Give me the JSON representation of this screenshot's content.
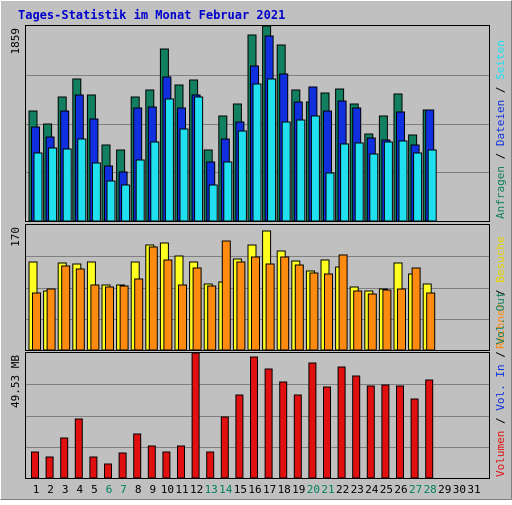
{
  "title": "Tages-Statistik im Monat Februar 2021",
  "colors": {
    "background": "#c0c0c0",
    "title_text": "#0000cc",
    "anfragen": "#128060",
    "dateien": "#1030e0",
    "seiten": "#20e0f0",
    "besuche": "#ffff20",
    "rechner": "#ff8a10",
    "volumen": "#e01010",
    "weekday_label": "#000000",
    "weekend_label": "#008060"
  },
  "chart_data": [
    {
      "type": "bar",
      "panel": "hits",
      "axis_label": "1859",
      "ylim": [
        0,
        1859
      ],
      "categories": [
        "1",
        "2",
        "3",
        "4",
        "5",
        "6",
        "7",
        "8",
        "9",
        "10",
        "11",
        "12",
        "13",
        "14",
        "15",
        "16",
        "17",
        "18",
        "19",
        "20",
        "21",
        "22",
        "23",
        "24",
        "25",
        "26",
        "27",
        "28",
        "29",
        "30",
        "31"
      ],
      "series": [
        {
          "name": "Anfragen",
          "values": [
            1050,
            920,
            1180,
            1350,
            1200,
            720,
            680,
            1180,
            1250,
            1640,
            1300,
            1340,
            680,
            1000,
            1120,
            1770,
            1859,
            1680,
            1250,
            1130,
            1220,
            1260,
            1120,
            830,
            1000,
            1210,
            820,
            1060,
            0,
            0,
            0
          ]
        },
        {
          "name": "Dateien",
          "values": [
            900,
            800,
            1050,
            1200,
            970,
            520,
            470,
            1080,
            1090,
            1370,
            1080,
            1200,
            560,
            780,
            940,
            1480,
            1760,
            1400,
            1130,
            1280,
            1050,
            1140,
            1080,
            790,
            770,
            1040,
            720,
            1060,
            0,
            0,
            0
          ]
        },
        {
          "name": "Seiten",
          "values": [
            650,
            700,
            690,
            780,
            550,
            380,
            340,
            580,
            750,
            1160,
            880,
            1180,
            340,
            560,
            860,
            1310,
            1350,
            940,
            960,
            1000,
            460,
            730,
            740,
            640,
            750,
            760,
            650,
            680,
            0,
            0,
            0
          ]
        }
      ]
    },
    {
      "type": "bar",
      "panel": "visits",
      "axis_label": "170",
      "ylim": [
        0,
        170
      ],
      "categories": [
        "1",
        "2",
        "3",
        "4",
        "5",
        "6",
        "7",
        "8",
        "9",
        "10",
        "11",
        "12",
        "13",
        "14",
        "15",
        "16",
        "17",
        "18",
        "19",
        "20",
        "21",
        "22",
        "23",
        "24",
        "25",
        "26",
        "27",
        "28",
        "29",
        "30",
        "31"
      ],
      "series": [
        {
          "name": "Besuche",
          "values": [
            120,
            80,
            118,
            117,
            120,
            88,
            89,
            120,
            143,
            145,
            128,
            119,
            90,
            92,
            124,
            143,
            162,
            135,
            121,
            107,
            122,
            113,
            86,
            80,
            83,
            118,
            104,
            90,
            0,
            0,
            0
          ]
        },
        {
          "name": "Rechner",
          "values": [
            77,
            83,
            114,
            110,
            88,
            85,
            87,
            96,
            140,
            122,
            89,
            112,
            87,
            148,
            119,
            126,
            117,
            126,
            116,
            105,
            104,
            129,
            80,
            76,
            81,
            83,
            112,
            78,
            0,
            0,
            0
          ]
        }
      ]
    },
    {
      "type": "bar",
      "panel": "volume",
      "axis_label": "49.53 MB",
      "ylim": [
        0,
        49.53
      ],
      "categories": [
        "1",
        "2",
        "3",
        "4",
        "5",
        "6",
        "7",
        "8",
        "9",
        "10",
        "11",
        "12",
        "13",
        "14",
        "15",
        "16",
        "17",
        "18",
        "19",
        "20",
        "21",
        "22",
        "23",
        "24",
        "25",
        "26",
        "27",
        "28",
        "29",
        "30",
        "31"
      ],
      "series": [
        {
          "name": "Volumen",
          "values": [
            10.5,
            8.5,
            16,
            23.5,
            8.5,
            5.5,
            10,
            17.5,
            12.5,
            10.5,
            12.5,
            49.53,
            10.5,
            24,
            33,
            48,
            43,
            38,
            33,
            45.5,
            36,
            44,
            40.5,
            36.5,
            37,
            36.5,
            31.5,
            39,
            0,
            0,
            0
          ]
        }
      ]
    }
  ],
  "legend": {
    "hits": [
      "Anfragen",
      "Dateien",
      "Seiten"
    ],
    "visits": [
      "Besuche",
      "Rechner"
    ],
    "volume": [
      "Vol. Out",
      "Vol. In",
      "Volumen"
    ]
  },
  "days": [
    "1",
    "2",
    "3",
    "4",
    "5",
    "6",
    "7",
    "8",
    "9",
    "10",
    "11",
    "12",
    "13",
    "14",
    "15",
    "16",
    "17",
    "18",
    "19",
    "20",
    "21",
    "22",
    "23",
    "24",
    "25",
    "26",
    "27",
    "28",
    "29",
    "30",
    "31"
  ],
  "weekend_days": [
    6,
    7,
    13,
    14,
    20,
    21,
    27,
    28
  ]
}
